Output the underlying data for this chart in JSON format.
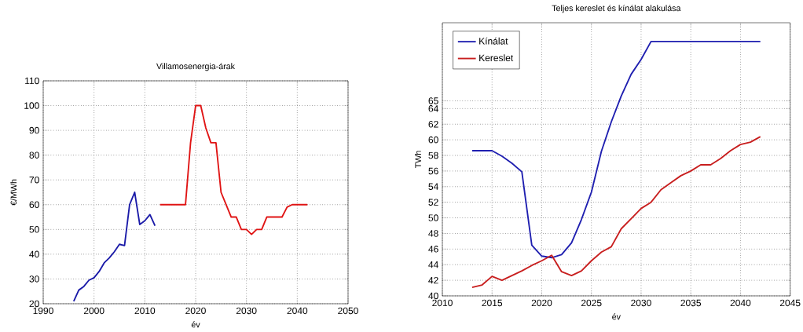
{
  "chart_data": [
    {
      "type": "line",
      "title": "Villamosenergia-árak",
      "xlabel": "év",
      "ylabel": "€/MWh",
      "xlim": [
        1990,
        2050
      ],
      "ylim": [
        20,
        110
      ],
      "xticks": [
        1990,
        2000,
        2010,
        2020,
        2030,
        2040,
        2050
      ],
      "yticks": [
        20,
        30,
        40,
        50,
        60,
        70,
        80,
        90,
        100,
        110
      ],
      "grid": true,
      "series": [
        {
          "color": "#1a1aa8",
          "x": [
            1996,
            1997,
            1998,
            1999,
            2000,
            2001,
            2002,
            2003,
            2004,
            2005,
            2006,
            2007,
            2008,
            2009,
            2010,
            2011,
            2012
          ],
          "values": [
            21,
            25.5,
            27,
            29.5,
            30.5,
            33,
            36.5,
            38.5,
            41,
            44,
            43.5,
            60,
            65,
            52,
            53.5,
            56,
            51.5
          ]
        },
        {
          "color": "#e01414",
          "x": [
            2013,
            2014,
            2015,
            2016,
            2017,
            2018,
            2019,
            2020,
            2021,
            2022,
            2023,
            2024,
            2025,
            2026,
            2027,
            2028,
            2029,
            2030,
            2031,
            2032,
            2033,
            2034,
            2035,
            2036,
            2037,
            2038,
            2039,
            2040,
            2041,
            2042
          ],
          "values": [
            60,
            60,
            60,
            60,
            60,
            60,
            85,
            100,
            100,
            91,
            85,
            85,
            65,
            60,
            55,
            55,
            50,
            50,
            48,
            50,
            50,
            55,
            55,
            55,
            55,
            59,
            60,
            60,
            60,
            60
          ]
        }
      ]
    },
    {
      "type": "line",
      "title": "Teljes kereslet és kínálat alakulása",
      "xlabel": "év",
      "ylabel": "TWh",
      "xlim": [
        2010,
        2045
      ],
      "ylim": [
        40,
        75
      ],
      "xticks": [
        2010,
        2015,
        2020,
        2025,
        2030,
        2035,
        2040,
        2045
      ],
      "yticks": [
        40,
        42,
        44,
        46,
        48,
        50,
        52,
        54,
        56,
        58,
        60,
        62,
        64,
        65
      ],
      "grid": true,
      "legend": "top left",
      "series": [
        {
          "name": "Kínálat",
          "color": "#1f1fb0",
          "x": [
            2013,
            2014,
            2015,
            2016,
            2017,
            2018,
            2019,
            2020,
            2021,
            2022,
            2023,
            2024,
            2025,
            2026,
            2027,
            2028,
            2029,
            2030,
            2031,
            2032,
            2033,
            2034,
            2035,
            2036,
            2037,
            2038,
            2039,
            2040,
            2041,
            2042
          ],
          "values": [
            58.6,
            58.6,
            58.6,
            57.9,
            57,
            55.9,
            46.5,
            45.1,
            44.9,
            45.3,
            46.8,
            49.8,
            53.3,
            58.5,
            62.3,
            65.6,
            68.4,
            70.3,
            72.6,
            72.6,
            72.6,
            72.6,
            72.6,
            72.6,
            72.6,
            72.6,
            72.6,
            72.6,
            72.6,
            72.6
          ]
        },
        {
          "name": "Kereslet",
          "color": "#c81e1e",
          "x": [
            2013,
            2014,
            2015,
            2016,
            2017,
            2018,
            2019,
            2020,
            2021,
            2022,
            2023,
            2024,
            2025,
            2026,
            2027,
            2028,
            2029,
            2030,
            2031,
            2032,
            2033,
            2034,
            2035,
            2036,
            2037,
            2038,
            2039,
            2040,
            2041,
            2042
          ],
          "values": [
            41.1,
            41.4,
            42.5,
            42,
            42.6,
            43.2,
            43.9,
            44.5,
            45.2,
            43.1,
            42.6,
            43.2,
            44.5,
            45.6,
            46.3,
            48.6,
            49.9,
            51.2,
            52,
            53.6,
            54.5,
            55.4,
            56,
            56.8,
            56.8,
            57.6,
            58.6,
            59.4,
            59.7,
            60.4
          ]
        }
      ]
    }
  ]
}
